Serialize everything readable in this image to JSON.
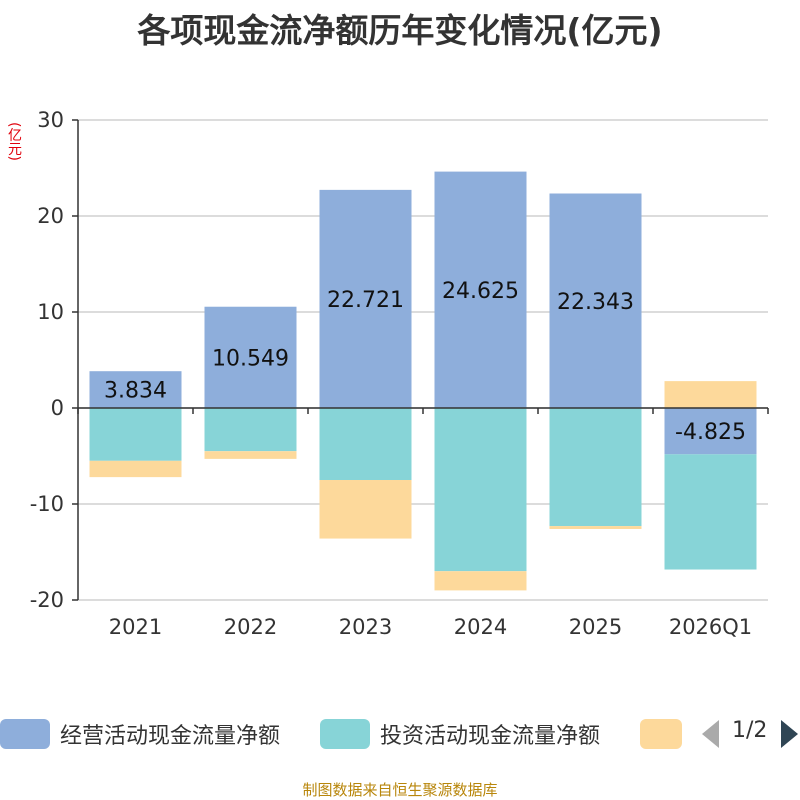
{
  "chart_data": {
    "type": "bar",
    "stacked": true,
    "title": "各项现金流净额历年变化情况(亿元)",
    "ylabel": "(亿元)",
    "xlabel": "",
    "ylim": [
      -20,
      30
    ],
    "yticks": [
      -20,
      -10,
      0,
      10,
      20,
      30
    ],
    "grid": true,
    "categories": [
      "2021",
      "2022",
      "2023",
      "2024",
      "2025",
      "2026Q1"
    ],
    "series": [
      {
        "name": "经营活动现金流量净额",
        "color": "#8eaedb",
        "values": [
          3.834,
          10.549,
          22.721,
          24.625,
          22.343,
          -4.825
        ],
        "labels": [
          "3.834",
          "10.549",
          "22.721",
          "24.625",
          "22.343",
          "-4.825"
        ]
      },
      {
        "name": "投资活动现金流量净额",
        "color": "#87d4d7",
        "values": [
          -5.5,
          -4.5,
          -7.5,
          -17.0,
          -12.3,
          -12.0
        ]
      },
      {
        "name": "",
        "color": "#fdd99b",
        "values": [
          -1.7,
          -0.8,
          -6.1,
          -2.0,
          -0.3,
          2.8
        ]
      }
    ],
    "legend_position": "bottom"
  },
  "legend": {
    "items": [
      {
        "label": "经营活动现金流量净额",
        "color": "#8eaedb"
      },
      {
        "label": "投资活动现金流量净额",
        "color": "#87d4d7"
      },
      {
        "label": "",
        "color": "#fdd99b"
      }
    ],
    "page": "1/2"
  },
  "source": "制图数据来自恒生聚源数据库"
}
